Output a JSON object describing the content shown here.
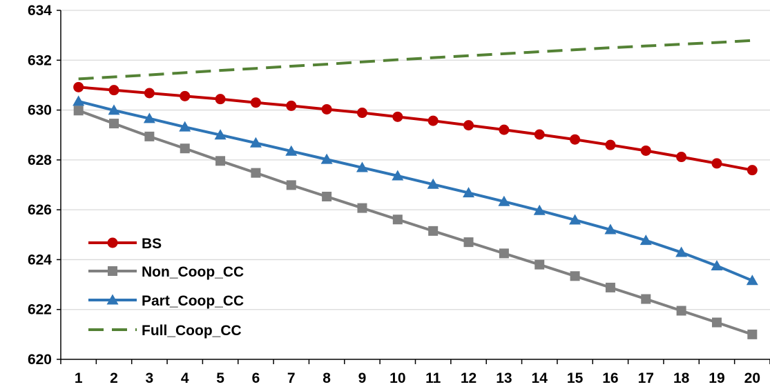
{
  "chart_data": {
    "type": "line",
    "title": "",
    "xlabel": "",
    "ylabel": "",
    "x": [
      1,
      2,
      3,
      4,
      5,
      6,
      7,
      8,
      9,
      10,
      11,
      12,
      13,
      14,
      15,
      16,
      17,
      18,
      19,
      20
    ],
    "ylim": [
      620,
      634
    ],
    "yticks": [
      620,
      622,
      624,
      626,
      628,
      630,
      632,
      634
    ],
    "grid": "horizontal",
    "legend": "lower-left",
    "series": [
      {
        "name": "BS",
        "color": "#C00000",
        "marker": "circle",
        "dash": "solid",
        "values": [
          630.92,
          630.8,
          630.68,
          630.56,
          630.44,
          630.3,
          630.17,
          630.03,
          629.89,
          629.73,
          629.57,
          629.39,
          629.21,
          629.02,
          628.82,
          628.6,
          628.37,
          628.12,
          627.86,
          627.59
        ]
      },
      {
        "name": "Non_Coop_CC",
        "color": "#808080",
        "marker": "square",
        "dash": "solid",
        "values": [
          629.98,
          629.46,
          628.94,
          628.46,
          627.96,
          627.48,
          626.99,
          626.53,
          626.07,
          625.61,
          625.15,
          624.7,
          624.25,
          623.8,
          623.34,
          622.88,
          622.42,
          621.95,
          621.48,
          621.0
        ]
      },
      {
        "name": "Part_Coop_CC",
        "color": "#2E75B6",
        "marker": "triangle",
        "dash": "solid",
        "values": [
          630.35,
          629.99,
          629.66,
          629.32,
          629.0,
          628.68,
          628.35,
          628.02,
          627.69,
          627.36,
          627.02,
          626.68,
          626.33,
          625.97,
          625.59,
          625.2,
          624.77,
          624.29,
          623.75,
          623.16
        ]
      },
      {
        "name": "Full_Coop_CC",
        "color": "#548235",
        "marker": "none",
        "dash": "dashed",
        "values": [
          631.25,
          631.33,
          631.41,
          631.5,
          631.59,
          631.67,
          631.76,
          631.84,
          631.93,
          632.02,
          632.1,
          632.18,
          632.26,
          632.34,
          632.42,
          632.5,
          632.57,
          632.64,
          632.71,
          632.79
        ]
      }
    ]
  }
}
